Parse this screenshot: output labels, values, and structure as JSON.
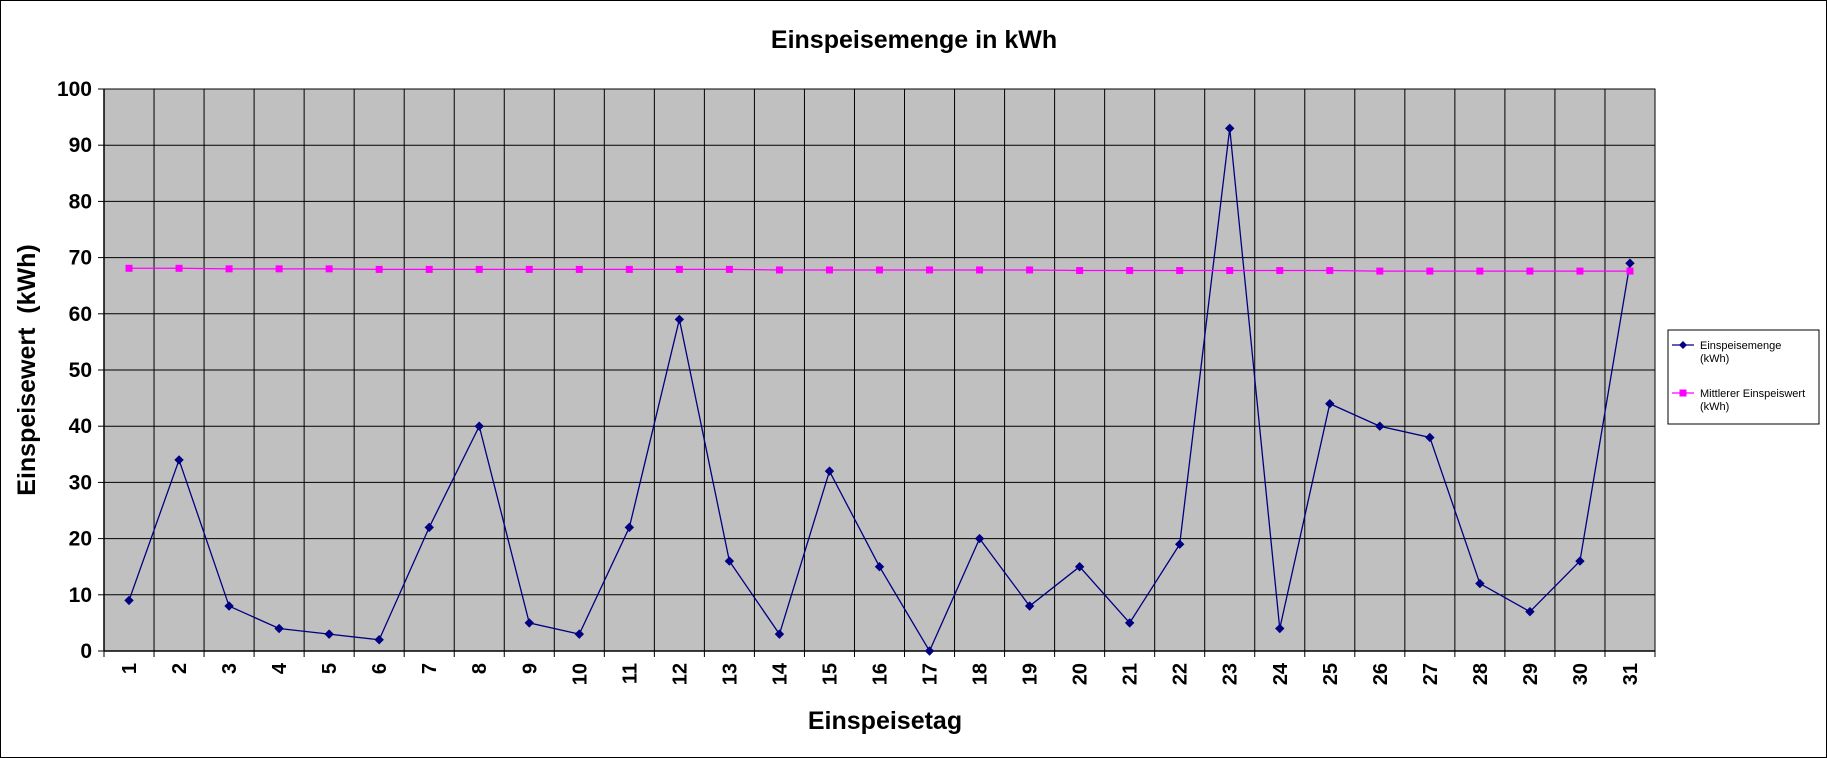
{
  "chart_data": {
    "type": "line",
    "title": "Einspeisemenge in kWh",
    "xlabel": "Einspeisetag",
    "ylabel": "Einspeisewert  (kWh)",
    "categories": [
      "1",
      "2",
      "3",
      "4",
      "5",
      "6",
      "7",
      "8",
      "9",
      "10",
      "11",
      "12",
      "13",
      "14",
      "15",
      "16",
      "17",
      "18",
      "19",
      "20",
      "21",
      "22",
      "23",
      "24",
      "25",
      "26",
      "27",
      "28",
      "29",
      "30",
      "31"
    ],
    "ylim": [
      0,
      100
    ],
    "yticks": [
      0,
      10,
      20,
      30,
      40,
      50,
      60,
      70,
      80,
      90,
      100
    ],
    "grid": true,
    "legend_position": "right",
    "plot_background": "#C0C0C0",
    "series": [
      {
        "name": "Einspeisemenge (kWh)",
        "color": "#000080",
        "marker": "diamond",
        "values": [
          9,
          34,
          8,
          4,
          3,
          2,
          22,
          40,
          5,
          3,
          22,
          59,
          16,
          3,
          32,
          15,
          0,
          20,
          8,
          15,
          5,
          19,
          93,
          4,
          44,
          40,
          38,
          12,
          7,
          16,
          69
        ]
      },
      {
        "name": "Mittlerer Einspeiswert (kWh)",
        "color": "#FF00FF",
        "marker": "square",
        "values": [
          68.1,
          68.1,
          68.0,
          68.0,
          68.0,
          67.9,
          67.9,
          67.9,
          67.9,
          67.9,
          67.9,
          67.9,
          67.9,
          67.8,
          67.8,
          67.8,
          67.8,
          67.8,
          67.8,
          67.7,
          67.7,
          67.7,
          67.7,
          67.7,
          67.7,
          67.6,
          67.6,
          67.6,
          67.6,
          67.6,
          67.6
        ]
      }
    ]
  }
}
